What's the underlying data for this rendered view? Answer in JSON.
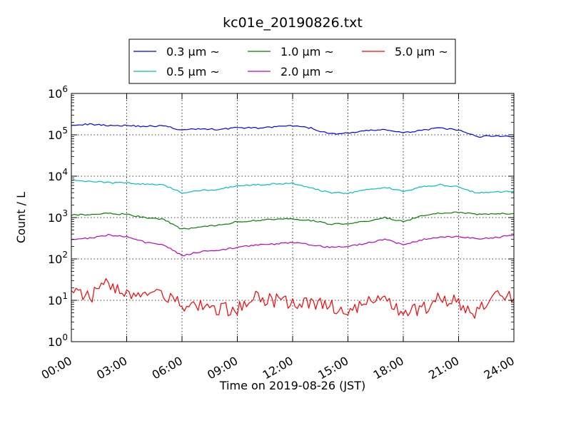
{
  "chart_data": {
    "type": "line",
    "title": "kc01e_20190826.txt",
    "xlabel": "Time on 2019-08-26 (JST)",
    "ylabel": "Count / L",
    "yscale": "log",
    "ylim": [
      1,
      1000000
    ],
    "xlim_hours": [
      0,
      24
    ],
    "x_tick_labels": [
      "00:00",
      "03:00",
      "06:00",
      "09:00",
      "12:00",
      "15:00",
      "18:00",
      "21:00",
      "24:00"
    ],
    "y_tick_labels": [
      {
        "base": "10",
        "exp": "0"
      },
      {
        "base": "10",
        "exp": "1"
      },
      {
        "base": "10",
        "exp": "2"
      },
      {
        "base": "10",
        "exp": "3"
      },
      {
        "base": "10",
        "exp": "4"
      },
      {
        "base": "10",
        "exp": "5"
      },
      {
        "base": "10",
        "exp": "6"
      }
    ],
    "legend_position": "above plot, centered",
    "x_hours": [
      0,
      1,
      2,
      3,
      4,
      5,
      6,
      7,
      8,
      9,
      10,
      11,
      12,
      13,
      14,
      15,
      16,
      17,
      18,
      19,
      20,
      21,
      22,
      23,
      24
    ],
    "series": [
      {
        "name": "0.3 μm ~",
        "color": "#0000ff",
        "values": [
          175000,
          180000,
          170000,
          168000,
          160000,
          165000,
          130000,
          140000,
          135000,
          150000,
          145000,
          155000,
          165000,
          145000,
          105000,
          110000,
          125000,
          135000,
          110000,
          130000,
          145000,
          130000,
          90000,
          95000,
          92000
        ]
      },
      {
        "name": "0.5 μm ~",
        "color": "#00bfbf",
        "values": [
          8000,
          7500,
          7000,
          6800,
          6500,
          6000,
          4000,
          4600,
          4800,
          6000,
          6200,
          6500,
          6800,
          5200,
          4000,
          3900,
          4600,
          5500,
          4200,
          5500,
          6200,
          5500,
          3900,
          4200,
          4300
        ]
      },
      {
        "name": "1.0 μm ~",
        "color": "#008000",
        "values": [
          1150,
          1200,
          1250,
          1200,
          1000,
          900,
          520,
          600,
          650,
          800,
          850,
          900,
          920,
          850,
          700,
          720,
          800,
          1000,
          800,
          1100,
          1300,
          1350,
          1200,
          1250,
          1250
        ]
      },
      {
        "name": "2.0 μm ~",
        "color": "#bf00bf",
        "values": [
          300,
          320,
          380,
          350,
          250,
          220,
          120,
          150,
          160,
          190,
          220,
          230,
          250,
          220,
          190,
          200,
          240,
          300,
          220,
          290,
          340,
          350,
          310,
          330,
          380
        ]
      },
      {
        "name": "5.0 μm ~",
        "color": "#ff0000",
        "values": [
          18,
          12,
          25,
          15,
          14,
          12,
          8,
          7,
          6,
          6,
          12,
          10,
          9,
          9,
          8,
          5,
          11,
          9,
          5,
          6,
          11,
          9,
          5,
          12,
          11
        ]
      }
    ]
  }
}
